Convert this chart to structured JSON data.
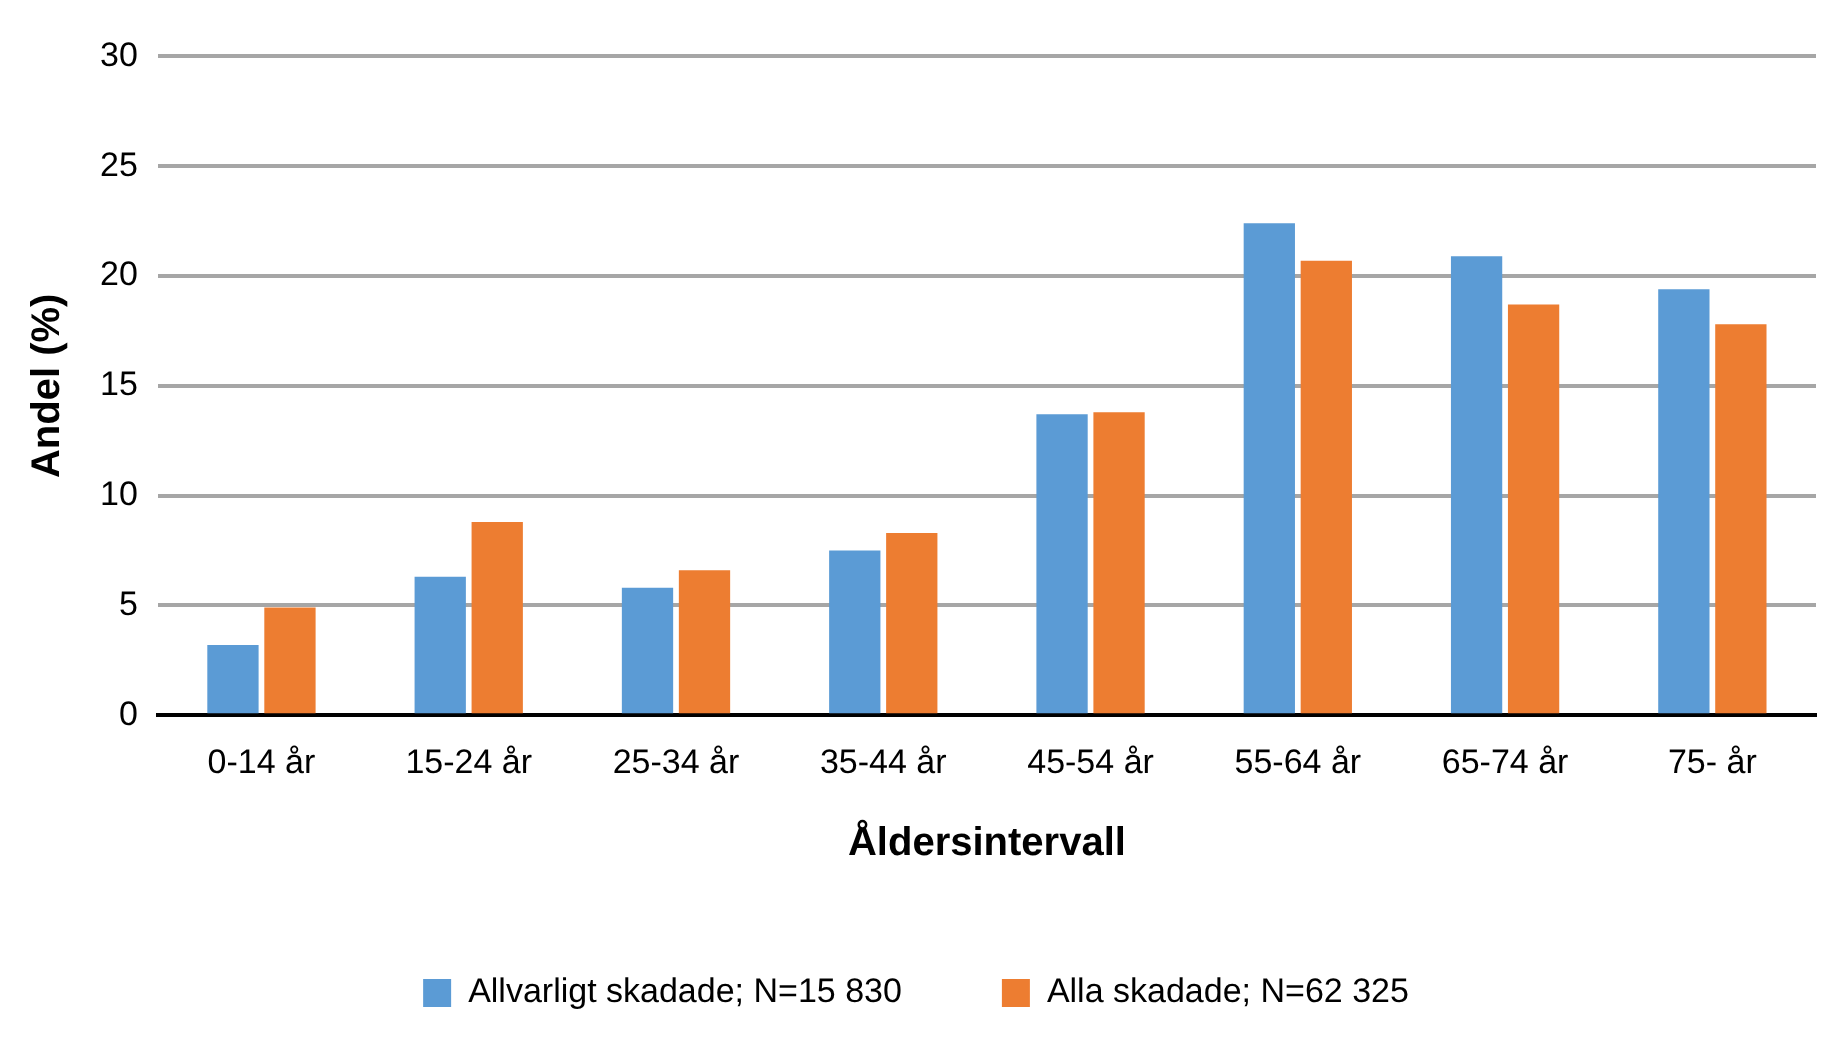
{
  "chart_data": {
    "type": "bar",
    "xlabel": "Åldersintervall",
    "ylabel": "Andel (%)",
    "categories": [
      "0-14 år",
      "15-24 år",
      "25-34 år",
      "35-44 år",
      "45-54 år",
      "55-64 år",
      "65-74 år",
      "75- år"
    ],
    "series": [
      {
        "name": "Allvarligt skadade; N=15 830",
        "color": "#5b9bd5",
        "values": [
          3.2,
          6.3,
          5.8,
          7.5,
          13.7,
          22.4,
          20.9,
          19.4
        ]
      },
      {
        "name": "Alla skadade; N=62 325",
        "color": "#ed7d31",
        "values": [
          4.9,
          8.8,
          6.6,
          8.3,
          13.8,
          20.7,
          18.7,
          17.8
        ]
      }
    ],
    "ylim": [
      0,
      30
    ],
    "yticks": [
      0,
      5,
      10,
      15,
      20,
      25,
      30
    ],
    "grid": "y",
    "legend": "bottom"
  }
}
